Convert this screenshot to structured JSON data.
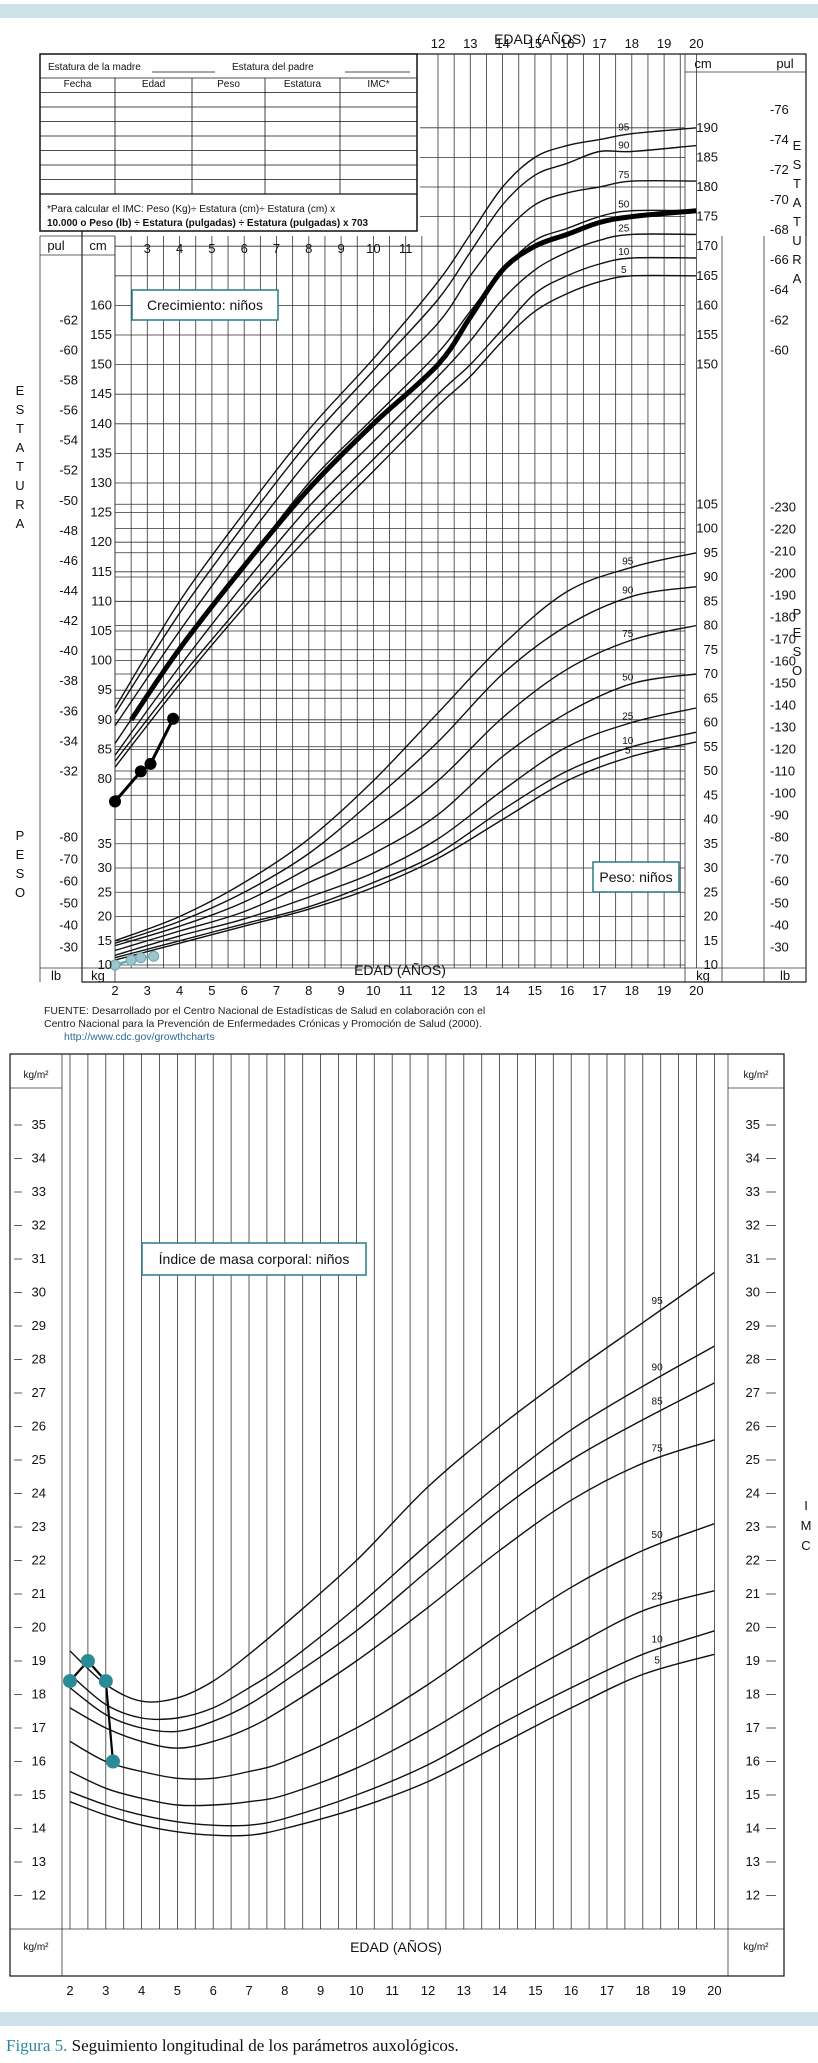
{
  "figure": {
    "caption_label": "Figura 5.",
    "caption_text": " Seguimiento longitudinal de los parámetros auxológicos."
  },
  "table": {
    "mother": "Estatura de la madre",
    "father": "Estatura del padre",
    "headers": [
      "Fecha",
      "Edad",
      "Peso",
      "Estatura",
      "IMC*"
    ],
    "note1": "*Para calcular el IMC: Peso (Kg)÷ Estatura (cm)÷ Estatura (cm) x",
    "note2": "10.000 o Peso (lb) ÷ Estatura (pulgadas) ÷ Estatura (pulgadas) x 703"
  },
  "source": {
    "line1": "FUENTE: Desarrollado por el Centro Nacional de Estadísticas de Salud en colaboración con el",
    "line2": "Centro Nacional para la Prevención de Enfermedades Crónicas y Promoción de Salud (2000).",
    "url": "http://www.cdc.gov/growthcharts"
  },
  "chart_data": [
    {
      "type": "line",
      "title": "Crecimiento: niños",
      "xlabel": "EDAD (AÑOS)",
      "ylabel": "ESTATURA",
      "xlim": [
        2,
        20
      ],
      "ylim": [
        75,
        200
      ],
      "units_left": "cm",
      "units_right": "cm",
      "inch_label": "pul",
      "percentiles": [
        "95",
        "90",
        "75",
        "50",
        "25",
        "10",
        "5"
      ],
      "x": [
        2,
        4,
        6,
        8,
        10,
        12,
        13,
        14,
        15,
        16,
        17,
        18,
        20
      ],
      "series": [
        {
          "name": "95",
          "values": [
            92,
            110,
            125,
            139,
            151,
            164,
            172,
            180,
            185,
            187,
            188,
            189,
            190
          ]
        },
        {
          "name": "90",
          "values": [
            91,
            108,
            123,
            137,
            149,
            161,
            169,
            177,
            182,
            184,
            186,
            186,
            187
          ]
        },
        {
          "name": "75",
          "values": [
            89,
            105,
            120,
            134,
            146,
            157,
            165,
            172,
            177,
            179,
            180,
            181,
            181
          ]
        },
        {
          "name": "50",
          "values": [
            86,
            102,
            116,
            130,
            141,
            152,
            159,
            166,
            171,
            173,
            175,
            176,
            176
          ]
        },
        {
          "name": "25",
          "values": [
            84,
            99,
            113,
            126,
            137,
            148,
            154,
            161,
            166,
            169,
            171,
            172,
            172
          ]
        },
        {
          "name": "10",
          "values": [
            83,
            97,
            110,
            123,
            134,
            145,
            150,
            156,
            162,
            165,
            167,
            168,
            168
          ]
        },
        {
          "name": "5",
          "values": [
            82,
            96,
            109,
            121,
            132,
            143,
            148,
            154,
            159,
            162,
            164,
            165,
            165
          ]
        }
      ],
      "patient_thick": {
        "x": [
          2.5,
          4,
          6,
          8,
          10,
          12,
          13,
          14,
          15,
          16,
          17,
          18,
          20
        ],
        "values": [
          90,
          102,
          116,
          129,
          140,
          150,
          158,
          166,
          170,
          172,
          174,
          175,
          176
        ]
      },
      "patient_points": {
        "x": [
          2,
          2.8,
          3.1,
          3.8
        ],
        "values": [
          30,
          32,
          32.5,
          35.5
        ]
      }
    },
    {
      "type": "line",
      "title": "Peso: niños",
      "xlabel": "EDAD (AÑOS)",
      "ylabel": "PESO",
      "xlim": [
        2,
        20
      ],
      "ylim": [
        10,
        105
      ],
      "units": "kg",
      "lb_label": "lb",
      "x": [
        2,
        4,
        6,
        8,
        10,
        12,
        14,
        16,
        18,
        20
      ],
      "series": [
        {
          "name": "95",
          "values": [
            15,
            20,
            27,
            36,
            48,
            62,
            76,
            87,
            92,
            95
          ]
        },
        {
          "name": "90",
          "values": [
            14.5,
            19,
            25,
            33,
            44,
            56,
            70,
            80,
            86,
            88
          ]
        },
        {
          "name": "75",
          "values": [
            14,
            18,
            23,
            30,
            38,
            48,
            61,
            71,
            77,
            80
          ]
        },
        {
          "name": "50",
          "values": [
            13,
            17,
            21,
            27,
            33,
            41,
            53,
            62,
            68,
            70
          ]
        },
        {
          "name": "25",
          "values": [
            12,
            16,
            19.5,
            24,
            29,
            36,
            46,
            55,
            60,
            63
          ]
        },
        {
          "name": "10",
          "values": [
            11.5,
            15,
            18.5,
            22,
            27,
            33,
            42,
            50,
            55,
            58
          ]
        },
        {
          "name": "5",
          "values": [
            11,
            14.5,
            18,
            21.5,
            26,
            32,
            40,
            48,
            53,
            56
          ]
        }
      ],
      "patient_points": {
        "x": [
          2,
          2.5,
          2.8,
          3.2
        ],
        "values": [
          10,
          11,
          11.5,
          11.8
        ]
      }
    },
    {
      "type": "line",
      "title": "Índice de masa corporal: niños",
      "xlabel": "EDAD (AÑOS)",
      "ylabel": "IMC",
      "xlim": [
        2,
        20
      ],
      "ylim": [
        11,
        37
      ],
      "units": "kg/m²",
      "x": [
        2,
        3,
        4,
        5,
        6,
        7,
        8,
        10,
        12,
        14,
        16,
        18,
        20
      ],
      "series": [
        {
          "name": "95",
          "values": [
            19.3,
            18.3,
            17.8,
            17.9,
            18.4,
            19.2,
            20.1,
            22.0,
            24.2,
            26.0,
            27.6,
            29.1,
            30.6
          ]
        },
        {
          "name": "90",
          "values": [
            18.6,
            17.7,
            17.3,
            17.3,
            17.6,
            18.2,
            18.9,
            20.6,
            22.5,
            24.3,
            25.9,
            27.2,
            28.4
          ]
        },
        {
          "name": "85",
          "values": [
            18.2,
            17.4,
            17.0,
            16.9,
            17.2,
            17.7,
            18.4,
            19.9,
            21.7,
            23.5,
            25.0,
            26.2,
            27.3
          ]
        },
        {
          "name": "75",
          "values": [
            17.6,
            17.0,
            16.6,
            16.4,
            16.6,
            17.0,
            17.6,
            19.0,
            20.6,
            22.3,
            23.8,
            24.9,
            25.6
          ]
        },
        {
          "name": "50",
          "values": [
            16.6,
            16.0,
            15.7,
            15.5,
            15.5,
            15.7,
            16.0,
            17.0,
            18.3,
            19.8,
            21.2,
            22.3,
            23.1
          ]
        },
        {
          "name": "25",
          "values": [
            15.7,
            15.2,
            14.9,
            14.7,
            14.7,
            14.8,
            15.0,
            15.8,
            16.9,
            18.2,
            19.4,
            20.5,
            21.1
          ]
        },
        {
          "name": "10",
          "values": [
            15.1,
            14.7,
            14.4,
            14.2,
            14.1,
            14.1,
            14.3,
            15.0,
            15.9,
            17.1,
            18.2,
            19.2,
            19.9
          ]
        },
        {
          "name": "5",
          "values": [
            14.8,
            14.4,
            14.1,
            13.9,
            13.8,
            13.8,
            14.0,
            14.6,
            15.4,
            16.5,
            17.6,
            18.6,
            19.2
          ]
        }
      ],
      "patient_points": {
        "x": [
          2,
          2.5,
          3,
          3.2
        ],
        "values": [
          18.4,
          19.0,
          18.4,
          16.0
        ]
      }
    }
  ]
}
